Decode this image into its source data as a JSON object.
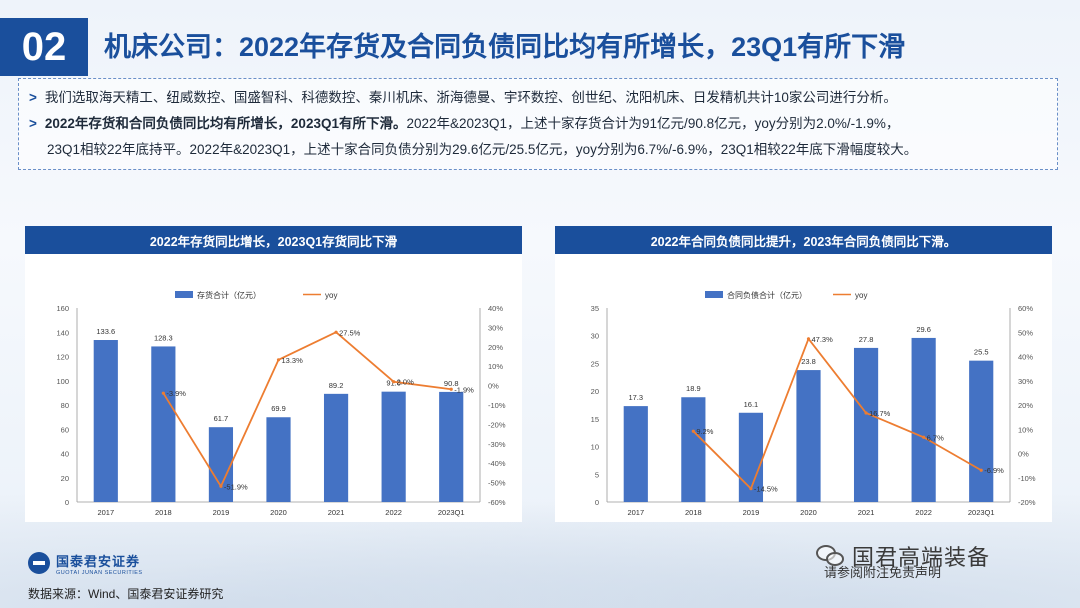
{
  "header": {
    "number": "02",
    "title": "机床公司：2022年存货及合同负债同比均有所增长，23Q1有所下滑"
  },
  "summary": {
    "bullet1": "我们选取海天精工、纽威数控、国盛智科、科德数控、秦川机床、浙海德曼、宇环数控、创世纪、沈阳机床、日发精机共计10家公司进行分析。",
    "bullet2_bold": "2022年存货和合同负债同比均有所增长，2023Q1有所下滑。",
    "bullet2_rest": "2022年&2023Q1，上述十家存货合计为91亿元/90.8亿元，yoy分别为2.0%/-1.9%，",
    "bullet2_line2": "23Q1相较22年底持平。2022年&2023Q1，上述十家合同负债分别为29.6亿元/25.5亿元，yoy分别为6.7%/-6.9%，23Q1相较22年底下滑幅度较大。"
  },
  "colors": {
    "primary": "#1a4f9c",
    "bar": "#4472c4",
    "line": "#ed7d31"
  },
  "chart_data": [
    {
      "type": "bar",
      "title": "2022年存货同比增长，2023Q1存货同比下滑",
      "categories": [
        "2017",
        "2018",
        "2019",
        "2020",
        "2021",
        "2022",
        "2023Q1"
      ],
      "series": [
        {
          "name": "存货合计（亿元）",
          "type": "bar",
          "axis": "left",
          "values": [
            133.6,
            128.3,
            61.7,
            69.9,
            89.2,
            91.0,
            90.8
          ],
          "labels": [
            "133.6",
            "128.3",
            "61.7",
            "69.9",
            "89.2",
            "91.0",
            "90.8"
          ]
        },
        {
          "name": "yoy",
          "type": "line",
          "axis": "right",
          "values": [
            null,
            -3.9,
            -51.9,
            13.3,
            27.5,
            2.0,
            -1.9
          ],
          "labels": [
            "",
            "-3.9%",
            "-51.9%",
            "13.3%",
            "27.5%",
            "2.0%",
            "-1.9%"
          ]
        }
      ],
      "ylim_left": [
        0,
        160
      ],
      "yticks_left": [
        "0",
        "20",
        "40",
        "60",
        "80",
        "100",
        "120",
        "140",
        "160"
      ],
      "ylim_right": [
        -60,
        40
      ],
      "yticks_right": [
        "-60%",
        "-50%",
        "-40%",
        "-30%",
        "-20%",
        "-10%",
        "0%",
        "10%",
        "20%",
        "30%",
        "40%"
      ],
      "legend_position": "top"
    },
    {
      "type": "bar",
      "title": "2022年合同负债同比提升，2023年合同负债同比下滑。",
      "categories": [
        "2017",
        "2018",
        "2019",
        "2020",
        "2021",
        "2022",
        "2023Q1"
      ],
      "series": [
        {
          "name": "合同负债合计（亿元）",
          "type": "bar",
          "axis": "left",
          "values": [
            17.3,
            18.9,
            16.1,
            23.8,
            27.8,
            29.6,
            25.5
          ],
          "labels": [
            "17.3",
            "18.9",
            "16.1",
            "23.8",
            "27.8",
            "29.6",
            "25.5"
          ]
        },
        {
          "name": "yoy",
          "type": "line",
          "axis": "right",
          "values": [
            null,
            9.2,
            -14.5,
            47.3,
            16.7,
            6.7,
            -6.9
          ],
          "labels": [
            "",
            "9.2%",
            "-14.5%",
            "47.3%",
            "16.7%",
            "6.7%",
            "-6.9%"
          ]
        }
      ],
      "ylim_left": [
        0,
        35
      ],
      "yticks_left": [
        "0",
        "5",
        "10",
        "15",
        "20",
        "25",
        "30",
        "35"
      ],
      "ylim_right": [
        -20,
        60
      ],
      "yticks_right": [
        "-20%",
        "-10%",
        "0%",
        "10%",
        "20%",
        "30%",
        "40%",
        "50%",
        "60%"
      ],
      "legend_position": "top"
    }
  ],
  "footer": {
    "logo_cn": "国泰君安证券",
    "logo_en": "GUOTAI JUNAN SECURITIES",
    "source": "数据来源：Wind、国泰君安证券研究",
    "watermark": "国君高端装备",
    "watermark_sub": "请参阅附注免责声明"
  }
}
